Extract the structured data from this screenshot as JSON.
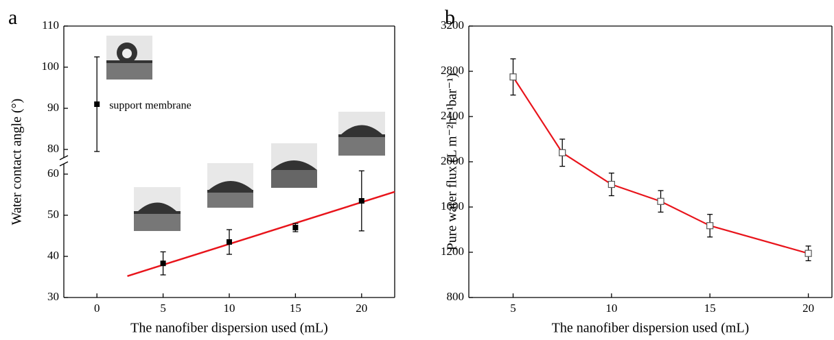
{
  "chart_data": [
    {
      "type": "scatter",
      "panel": "a",
      "xlabel": "The nanofiber dispersion used (mL)",
      "ylabel": "Water contact angle (°)",
      "x": [
        0,
        5,
        10,
        15,
        20
      ],
      "values": [
        91,
        38.3,
        43.5,
        47,
        53.5
      ],
      "errors": [
        11.5,
        2.8,
        3,
        1,
        7.3
      ],
      "color": "#000000",
      "xlim": [
        -2.5,
        22.5
      ],
      "xticks": [
        0,
        5,
        10,
        15,
        20
      ],
      "ylim": [
        30,
        110
      ],
      "yticks": [
        30,
        40,
        50,
        60,
        80,
        90,
        100,
        110
      ],
      "broken_axis": true,
      "fit": {
        "x": [
          2.3,
          22.5
        ],
        "y": [
          35.2,
          55.7
        ],
        "color": "#e8141b"
      },
      "annotation": "support membrane"
    },
    {
      "type": "line",
      "panel": "b",
      "xlabel": "The nanofiber dispersion used (mL)",
      "ylabel": "Pure water flux (L m⁻²h⁻¹bar⁻¹)",
      "x": [
        5,
        7.5,
        10,
        12.5,
        15,
        20
      ],
      "values": [
        2750,
        2080,
        1800,
        1650,
        1435,
        1190
      ],
      "errors": [
        160,
        120,
        100,
        95,
        100,
        65
      ],
      "color": "#e8141b",
      "marker_color": "#555555",
      "xlim": [
        2.75,
        21.2
      ],
      "xticks": [
        5,
        10,
        15,
        20
      ],
      "ylim": [
        800,
        3200
      ],
      "yticks": [
        800,
        1200,
        1600,
        2000,
        2400,
        2800,
        3200
      ]
    }
  ]
}
